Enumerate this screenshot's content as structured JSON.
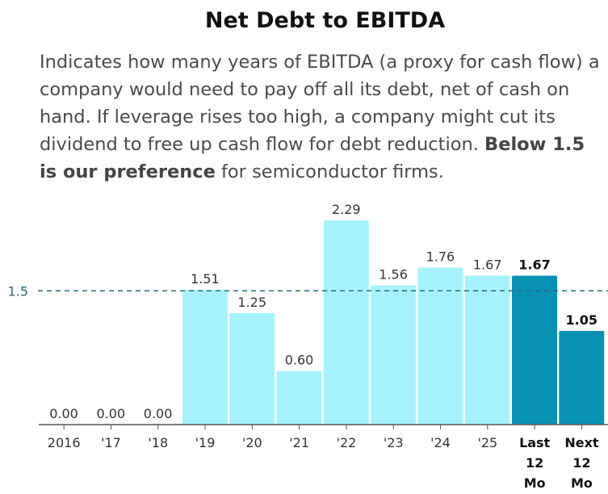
{
  "title": "Net Debt to EBITDA",
  "description": {
    "text_before": "Indicates how many years of EBITDA (a proxy for cash flow) a company would need to pay off all its debt, net of cash on hand. If leverage rises too high, a company might cut its dividend to free up cash flow for debt reduction. ",
    "bold": "Below 1.5 is our preference",
    "text_after": " for semiconductor firms."
  },
  "colors": {
    "history": "#a6f2fc",
    "forecast": "#0891b2",
    "reference": "#2b6a80"
  },
  "chart_data": {
    "type": "bar",
    "title": "Net Debt to EBITDA",
    "categories": [
      "2016",
      "'17",
      "'18",
      "'19",
      "'20",
      "'21",
      "'22",
      "'23",
      "'24",
      "'25",
      "Last 12 Mo",
      "Next 12 Mo"
    ],
    "category_lines": [
      [
        "2016"
      ],
      [
        "'17"
      ],
      [
        "'18"
      ],
      [
        "'19"
      ],
      [
        "'20"
      ],
      [
        "'21"
      ],
      [
        "'22"
      ],
      [
        "'23"
      ],
      [
        "'24"
      ],
      [
        "'25"
      ],
      [
        "Last",
        "12",
        "Mo"
      ],
      [
        "Next",
        "12",
        "Mo"
      ]
    ],
    "values": [
      0.0,
      0.0,
      0.0,
      1.51,
      1.25,
      0.6,
      2.29,
      1.56,
      1.76,
      1.67,
      1.67,
      1.05
    ],
    "value_labels": [
      "0.00",
      "0.00",
      "0.00",
      "1.51",
      "1.25",
      "0.60",
      "2.29",
      "1.56",
      "1.76",
      "1.67",
      "1.67",
      "1.05"
    ],
    "highlighted": [
      false,
      false,
      false,
      false,
      false,
      false,
      false,
      false,
      false,
      false,
      true,
      true
    ],
    "reference_line": {
      "value": 1.5,
      "label": "1.5"
    },
    "ylim": [
      0,
      2.29
    ],
    "grid": false
  }
}
